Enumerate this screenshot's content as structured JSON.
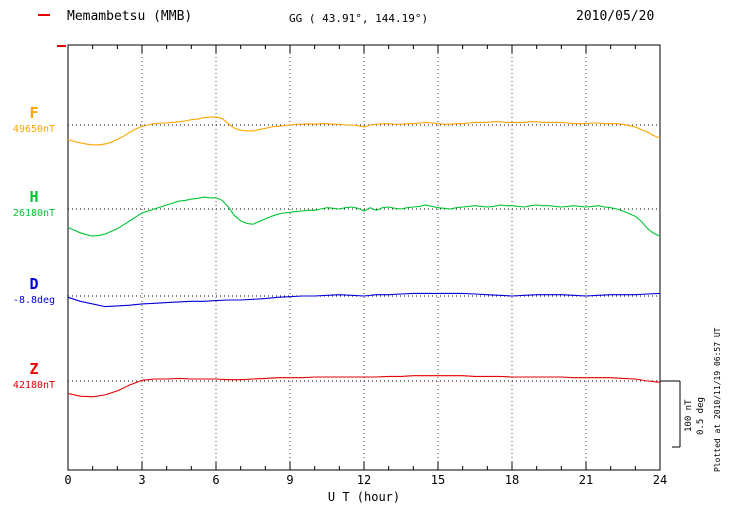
{
  "header": {
    "station": "Memambetsu (MMB)",
    "coordinates": "GG ( 43.91°, 144.19°)",
    "date": "2010/05/20"
  },
  "footer": {
    "plotted_at": "Plotted at 2010/11/19 06:57 UT"
  },
  "chart_data": {
    "type": "line",
    "title": "Memambetsu (MMB) magnetogram 2010/05/20",
    "xlabel": "U T (hour)",
    "x_range": [
      0,
      24
    ],
    "x_ticks": [
      0,
      3,
      6,
      9,
      12,
      15,
      18,
      21,
      24
    ],
    "x_minor_tick_step": 1,
    "grid": "dotted-vertical-every-3h-and-dotted-baselines",
    "scale_bar": {
      "nt_label": "100 nT",
      "deg_label": "0.5 deg",
      "nT": 100,
      "deg": 0.5
    },
    "series": [
      {
        "name": "F",
        "unit": "nT",
        "color": "#FFA500",
        "baseline_value": "49650nT",
        "t_step": 0.25,
        "offsets": [
          -22,
          -25,
          -27,
          -29,
          -30,
          -30,
          -29,
          -26,
          -22,
          -17,
          -11,
          -6,
          -2,
          0,
          2,
          3,
          3,
          4,
          5,
          6,
          8,
          9,
          11,
          12,
          12,
          10,
          2,
          -5,
          -8,
          -9,
          -9,
          -7,
          -5,
          -3,
          -2,
          -1,
          0,
          1,
          1,
          2,
          1,
          2,
          2,
          1,
          1,
          0,
          0,
          -1,
          -3,
          0,
          1,
          2,
          2,
          1,
          1,
          2,
          2,
          3,
          4,
          3,
          2,
          1,
          1,
          2,
          2,
          3,
          4,
          4,
          4,
          5,
          5,
          4,
          4,
          4,
          4,
          5,
          5,
          4,
          4,
          4,
          4,
          3,
          2,
          2,
          2,
          3,
          3,
          2,
          2,
          2,
          1,
          -1,
          -3,
          -7,
          -11,
          -16,
          -20
        ]
      },
      {
        "name": "H",
        "unit": "nT",
        "color": "#00C432",
        "baseline_value": "26180nT",
        "t_step": 0.25,
        "offsets": [
          -28,
          -32,
          -36,
          -39,
          -41,
          -40,
          -38,
          -34,
          -30,
          -24,
          -18,
          -12,
          -6,
          -3,
          0,
          3,
          6,
          9,
          12,
          13,
          15,
          16,
          18,
          17,
          17,
          13,
          3,
          -10,
          -18,
          -22,
          -23,
          -19,
          -15,
          -11,
          -8,
          -6,
          -5,
          -4,
          -3,
          -2,
          -2,
          0,
          2,
          1,
          0,
          2,
          3,
          1,
          -3,
          2,
          -2,
          2,
          3,
          1,
          0,
          2,
          3,
          4,
          6,
          4,
          2,
          1,
          0,
          2,
          3,
          4,
          5,
          4,
          3,
          4,
          6,
          5,
          5,
          4,
          3,
          5,
          6,
          5,
          5,
          4,
          3,
          4,
          5,
          4,
          3,
          4,
          5,
          3,
          2,
          0,
          -3,
          -7,
          -11,
          -19,
          -30,
          -37,
          -41
        ]
      },
      {
        "name": "D",
        "unit": "deg",
        "color": "#0000DC",
        "baseline_value": "-8.8deg",
        "t_step": 0.5,
        "offsets": [
          -0.01,
          -0.04,
          -0.06,
          -0.08,
          -0.075,
          -0.07,
          -0.06,
          -0.055,
          -0.05,
          -0.045,
          -0.04,
          -0.04,
          -0.035,
          -0.03,
          -0.03,
          -0.025,
          -0.02,
          -0.01,
          -0.005,
          0,
          0,
          0.005,
          0.01,
          0.005,
          0,
          0.01,
          0.01,
          0.015,
          0.02,
          0.02,
          0.02,
          0.02,
          0.02,
          0.015,
          0.01,
          0.005,
          0,
          0.005,
          0.01,
          0.01,
          0.01,
          0.005,
          0,
          0.005,
          0.01,
          0.01,
          0.01,
          0.015,
          0.02
        ]
      },
      {
        "name": "Z",
        "unit": "nT",
        "color": "#E60000",
        "baseline_value": "42180nT",
        "t_step": 0.5,
        "offsets": [
          -19,
          -23,
          -24,
          -21,
          -15,
          -6,
          1,
          3,
          3,
          4,
          3,
          3,
          3,
          2,
          2,
          3,
          4,
          5,
          5,
          5,
          6,
          6,
          6,
          6,
          6,
          6,
          7,
          7,
          8,
          8,
          8,
          8,
          8,
          7,
          7,
          7,
          6,
          6,
          6,
          6,
          6,
          5,
          5,
          5,
          5,
          4,
          3,
          0,
          -2
        ]
      }
    ]
  }
}
